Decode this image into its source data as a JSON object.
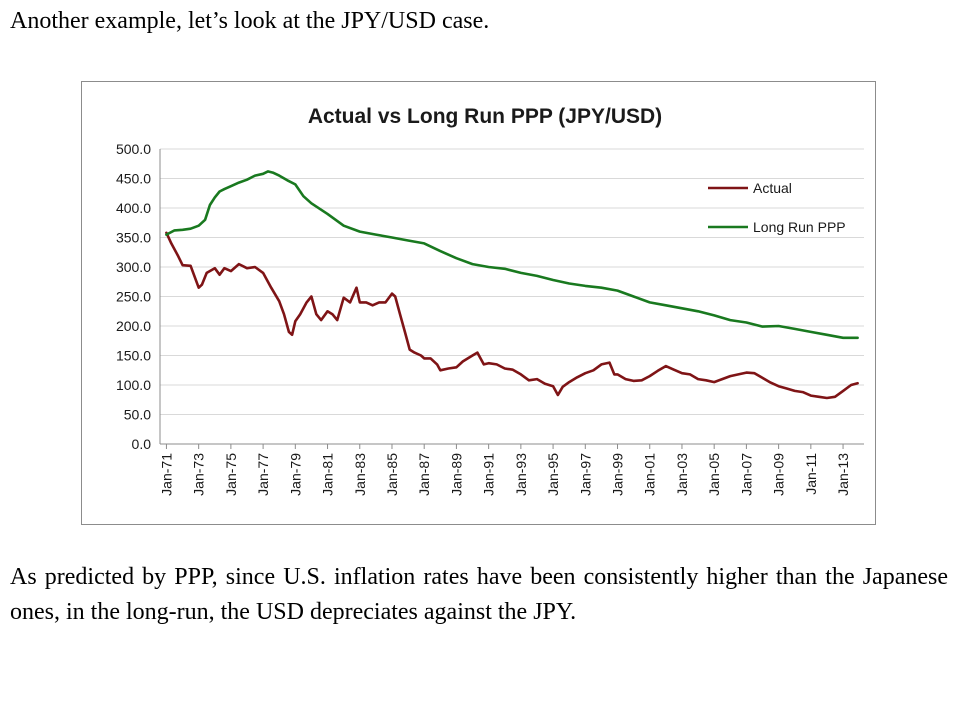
{
  "intro": "Another example, let’s look at the JPY/USD case.",
  "conclusion": "As predicted by PPP, since U.S. inflation rates have been consistently higher than the Japanese ones, in the long-run, the USD depreciates against the JPY.",
  "chart_data": {
    "type": "line",
    "title": "Actual vs Long Run PPP (JPY/USD)",
    "xlabel": "",
    "ylabel": "",
    "ylim": [
      0,
      500
    ],
    "yticks": [
      "0.0",
      "50.0",
      "100.0",
      "150.0",
      "200.0",
      "250.0",
      "300.0",
      "350.0",
      "400.0",
      "450.0",
      "500.0"
    ],
    "xticks": [
      "Jan-71",
      "Jan-73",
      "Jan-75",
      "Jan-77",
      "Jan-79",
      "Jan-81",
      "Jan-83",
      "Jan-85",
      "Jan-87",
      "Jan-89",
      "Jan-91",
      "Jan-93",
      "Jan-95",
      "Jan-97",
      "Jan-99",
      "Jan-01",
      "Jan-03",
      "Jan-05",
      "Jan-07",
      "Jan-09",
      "Jan-11",
      "Jan-13"
    ],
    "grid": true,
    "legend": "right",
    "series": [
      {
        "name": "Actual",
        "color": "#7f1416",
        "x": [
          1971.0,
          1971.3,
          1971.7,
          1972.0,
          1972.5,
          1973.0,
          1973.2,
          1973.5,
          1974.0,
          1974.3,
          1974.6,
          1975.0,
          1975.5,
          1976.0,
          1976.5,
          1977.0,
          1977.5,
          1978.0,
          1978.3,
          1978.6,
          1978.8,
          1979.0,
          1979.3,
          1979.7,
          1980.0,
          1980.3,
          1980.6,
          1981.0,
          1981.3,
          1981.6,
          1982.0,
          1982.4,
          1982.8,
          1983.0,
          1983.4,
          1983.8,
          1984.2,
          1984.6,
          1985.0,
          1985.2,
          1985.5,
          1985.8,
          1986.1,
          1986.4,
          1986.8,
          1987.0,
          1987.4,
          1987.8,
          1988.0,
          1988.5,
          1989.0,
          1989.4,
          1990.0,
          1990.3,
          1990.7,
          1991.0,
          1991.5,
          1992.0,
          1992.5,
          1993.0,
          1993.5,
          1994.0,
          1994.5,
          1995.0,
          1995.3,
          1995.6,
          1996.0,
          1996.5,
          1997.0,
          1997.5,
          1998.0,
          1998.5,
          1998.8,
          1999.0,
          1999.5,
          2000.0,
          2000.5,
          2001.0,
          2001.5,
          2002.0,
          2002.5,
          2003.0,
          2003.5,
          2004.0,
          2004.5,
          2005.0,
          2005.5,
          2006.0,
          2006.5,
          2007.0,
          2007.5,
          2008.0,
          2008.5,
          2009.0,
          2009.5,
          2010.0,
          2010.5,
          2011.0,
          2011.5,
          2012.0,
          2012.5,
          2013.0,
          2013.5,
          2013.9
        ],
        "y": [
          358,
          340,
          320,
          303,
          302,
          265,
          270,
          290,
          298,
          287,
          298,
          293,
          305,
          298,
          300,
          290,
          265,
          242,
          220,
          190,
          185,
          208,
          220,
          240,
          250,
          220,
          210,
          225,
          220,
          210,
          248,
          240,
          265,
          240,
          240,
          235,
          240,
          240,
          255,
          250,
          220,
          190,
          160,
          155,
          150,
          145,
          145,
          135,
          125,
          128,
          130,
          140,
          150,
          155,
          135,
          137,
          135,
          128,
          126,
          118,
          108,
          110,
          102,
          98,
          83,
          97,
          105,
          113,
          120,
          125,
          135,
          138,
          118,
          118,
          110,
          107,
          108,
          115,
          124,
          132,
          126,
          120,
          118,
          110,
          108,
          105,
          110,
          115,
          118,
          121,
          120,
          112,
          104,
          98,
          94,
          90,
          88,
          82,
          80,
          78,
          80,
          90,
          100,
          103
        ]
      },
      {
        "name": "Long Run PPP",
        "color": "#19791f",
        "x": [
          1971.0,
          1971.5,
          1972.0,
          1972.5,
          1973.0,
          1973.4,
          1973.7,
          1974.0,
          1974.3,
          1974.6,
          1975.0,
          1975.5,
          1976.0,
          1976.5,
          1977.0,
          1977.3,
          1977.6,
          1978.0,
          1978.5,
          1979.0,
          1979.5,
          1980.0,
          1981.0,
          1982.0,
          1983.0,
          1984.0,
          1985.0,
          1986.0,
          1987.0,
          1988.0,
          1989.0,
          1990.0,
          1991.0,
          1992.0,
          1993.0,
          1994.0,
          1995.0,
          1996.0,
          1997.0,
          1998.0,
          1999.0,
          2000.0,
          2001.0,
          2002.0,
          2003.0,
          2004.0,
          2005.0,
          2006.0,
          2007.0,
          2008.0,
          2009.0,
          2010.0,
          2011.0,
          2012.0,
          2013.0,
          2013.9
        ],
        "y": [
          355,
          362,
          363,
          365,
          370,
          380,
          405,
          418,
          428,
          432,
          437,
          443,
          448,
          455,
          458,
          462,
          460,
          455,
          447,
          440,
          420,
          408,
          390,
          370,
          360,
          355,
          350,
          345,
          340,
          327,
          315,
          305,
          300,
          297,
          290,
          285,
          278,
          272,
          268,
          265,
          260,
          250,
          240,
          235,
          230,
          225,
          218,
          210,
          206,
          199,
          200,
          195,
          190,
          185,
          180,
          180
        ]
      }
    ]
  }
}
